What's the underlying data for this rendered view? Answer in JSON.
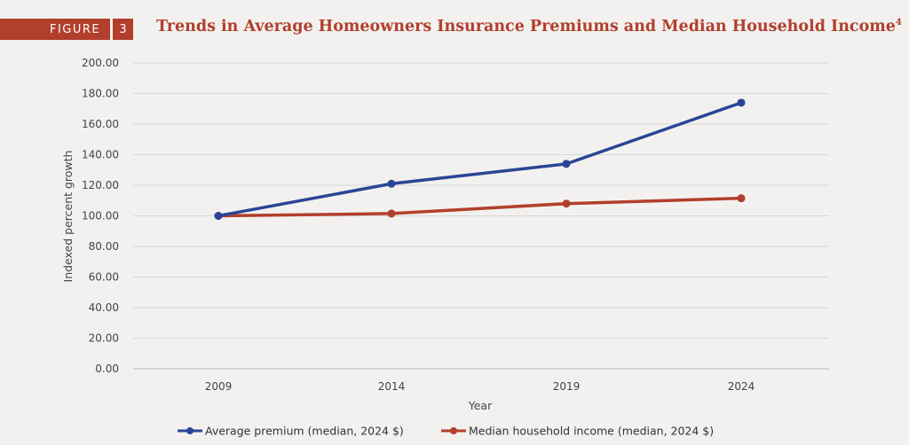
{
  "figure": {
    "label": "FIGURE",
    "number": "3"
  },
  "chart_data": {
    "type": "line",
    "title": "Trends in Average Homeowners Insurance Premiums and Median Household Income",
    "title_superscript": "4",
    "xlabel": "Year",
    "ylabel": "Indexed percent growth",
    "categories": [
      "2009",
      "2014",
      "2019",
      "2024"
    ],
    "ylim": [
      0,
      200
    ],
    "yticks": [
      "0.00",
      "20.00",
      "40.00",
      "60.00",
      "80.00",
      "100.00",
      "120.00",
      "140.00",
      "160.00",
      "180.00",
      "200.00"
    ],
    "grid": true,
    "legend_position": "bottom",
    "series": [
      {
        "name": "Average premium (median, 2024 $)",
        "color": "#2a4596",
        "values": [
          100,
          121,
          134,
          174
        ]
      },
      {
        "name": "Median household income (median, 2024 $)",
        "color": "#b23f2c",
        "values": [
          100,
          101.5,
          108,
          111.5
        ]
      }
    ]
  }
}
